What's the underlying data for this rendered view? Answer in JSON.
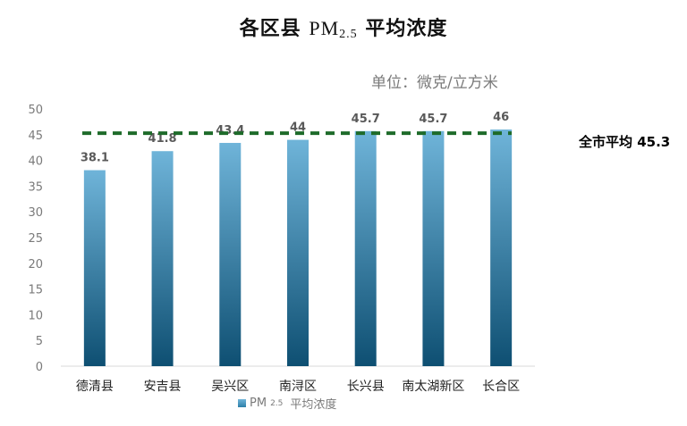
{
  "chart_data": {
    "type": "bar",
    "title_prefix": "各区县",
    "title_pm": "PM",
    "title_sub": "2.5",
    "title_suffix": "平均浓度",
    "unit": "单位：微克/立方米",
    "categories": [
      "德清县",
      "安吉县",
      "吴兴区",
      "南浔区",
      "长兴县",
      "南太湖新区",
      "长合区"
    ],
    "values": [
      38.1,
      41.8,
      43.4,
      44,
      45.7,
      45.7,
      46
    ],
    "value_labels": [
      "38.1",
      "41.8",
      "43.4",
      "44",
      "45.7",
      "45.7",
      "46"
    ],
    "ylim": [
      0,
      50
    ],
    "yticks": [
      0,
      5,
      10,
      15,
      20,
      25,
      30,
      35,
      40,
      45,
      50
    ],
    "reference_line": {
      "value": 45.3,
      "label": "全市平均 45.3",
      "color": "#1e6b2a",
      "style": "dashed"
    },
    "legend": {
      "pm": "PM",
      "sub": "2.5",
      "text": "平均浓度",
      "placement": "bottom"
    },
    "colors": {
      "bar_top": "#6fb4d9",
      "bar_bottom": "#0e4f72",
      "axis": "#d9d9d9",
      "tick_text": "#7a7a7a",
      "value_text": "#595959"
    },
    "grid": false
  }
}
